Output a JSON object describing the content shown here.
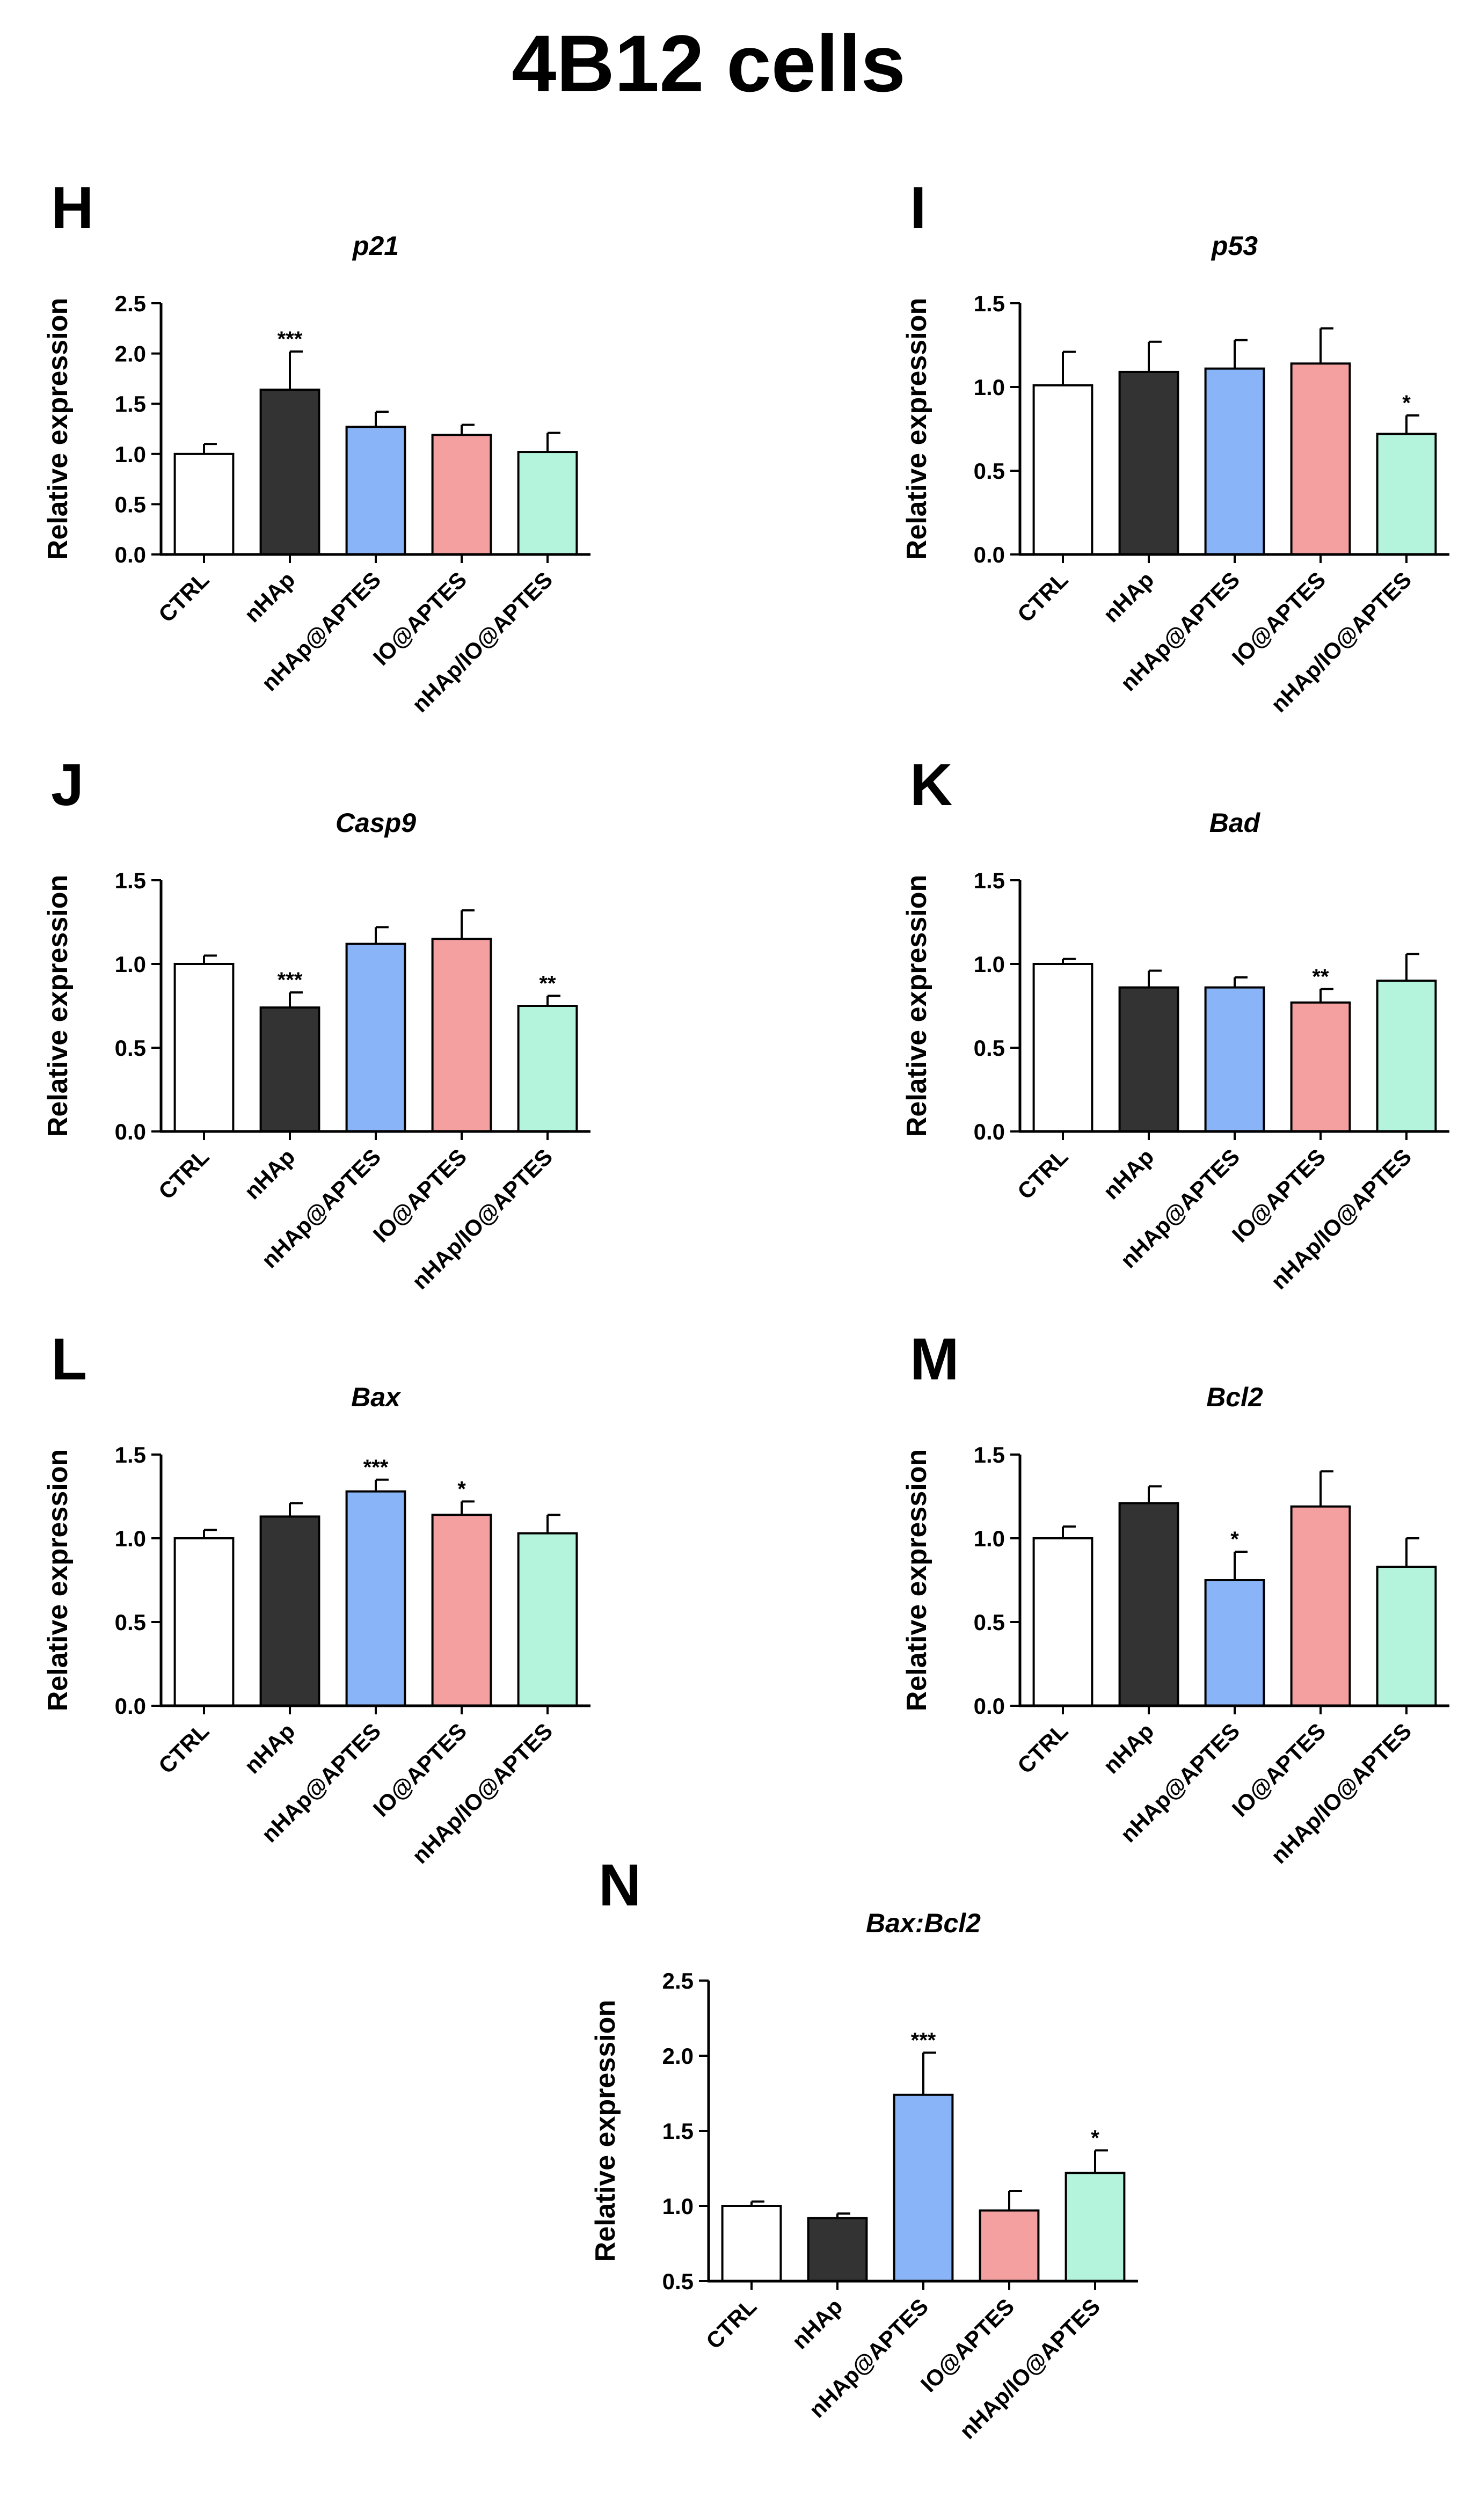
{
  "figure": {
    "title": "4B12 cells"
  },
  "colors": {
    "CTRL": "#ffffff",
    "nHAp": "#333333",
    "nHAp@APTES": "#8ab4f8",
    "IO@APTES": "#f4a0a0",
    "nHAp/IO@APTES": "#b4f4dc"
  },
  "chart_data": [
    {
      "panel": "H",
      "type": "bar",
      "title": "p21",
      "ylabel": "Relative expression",
      "categories": [
        "CTRL",
        "nHAp",
        "nHAp@APTES",
        "IO@APTES",
        "nHAp/IO@APTES"
      ],
      "values": [
        1.0,
        1.64,
        1.27,
        1.19,
        1.02
      ],
      "errors": [
        0.1,
        0.38,
        0.15,
        0.1,
        0.19
      ],
      "significance": [
        "",
        "***",
        "",
        "",
        ""
      ],
      "ylim": [
        0,
        2.5
      ],
      "yticks": [
        "0.0",
        "0.5",
        "1.0",
        "1.5",
        "2.0",
        "2.5"
      ]
    },
    {
      "panel": "I",
      "type": "bar",
      "title": "p53",
      "ylabel": "Relative expression",
      "categories": [
        "CTRL",
        "nHAp",
        "nHAp@APTES",
        "IO@APTES",
        "nHAp/IO@APTES"
      ],
      "values": [
        1.01,
        1.09,
        1.11,
        1.14,
        0.72
      ],
      "errors": [
        0.2,
        0.18,
        0.17,
        0.21,
        0.11
      ],
      "significance": [
        "",
        "",
        "",
        "",
        "*"
      ],
      "ylim": [
        0,
        1.5
      ],
      "yticks": [
        "0.0",
        "0.5",
        "1.0",
        "1.5"
      ]
    },
    {
      "panel": "J",
      "type": "bar",
      "title": "Casp9",
      "ylabel": "Relative expression",
      "categories": [
        "CTRL",
        "nHAp",
        "nHAp@APTES",
        "IO@APTES",
        "nHAp/IO@APTES"
      ],
      "values": [
        1.0,
        0.74,
        1.12,
        1.15,
        0.75
      ],
      "errors": [
        0.05,
        0.09,
        0.1,
        0.17,
        0.06
      ],
      "significance": [
        "",
        "***",
        "",
        "",
        "**"
      ],
      "ylim": [
        0,
        1.5
      ],
      "yticks": [
        "0.0",
        "0.5",
        "1.0",
        "1.5"
      ]
    },
    {
      "panel": "K",
      "type": "bar",
      "title": "Bad",
      "ylabel": "Relative expression",
      "categories": [
        "CTRL",
        "nHAp",
        "nHAp@APTES",
        "IO@APTES",
        "nHAp/IO@APTES"
      ],
      "values": [
        1.0,
        0.86,
        0.86,
        0.77,
        0.9
      ],
      "errors": [
        0.03,
        0.1,
        0.06,
        0.08,
        0.16
      ],
      "significance": [
        "",
        "",
        "",
        "**",
        ""
      ],
      "ylim": [
        0,
        1.5
      ],
      "yticks": [
        "0.0",
        "0.5",
        "1.0",
        "1.5"
      ]
    },
    {
      "panel": "L",
      "type": "bar",
      "title": "Bax",
      "ylabel": "Relative expression",
      "categories": [
        "CTRL",
        "nHAp",
        "nHAp@APTES",
        "IO@APTES",
        "nHAp/IO@APTES"
      ],
      "values": [
        1.0,
        1.13,
        1.28,
        1.14,
        1.03
      ],
      "errors": [
        0.05,
        0.08,
        0.07,
        0.08,
        0.11
      ],
      "significance": [
        "",
        "",
        "***",
        "*",
        ""
      ],
      "ylim": [
        0,
        1.5
      ],
      "yticks": [
        "0.0",
        "0.5",
        "1.0",
        "1.5"
      ]
    },
    {
      "panel": "M",
      "type": "bar",
      "title": "Bcl2",
      "ylabel": "Relative expression",
      "categories": [
        "CTRL",
        "nHAp",
        "nHAp@APTES",
        "IO@APTES",
        "nHAp/IO@APTES"
      ],
      "values": [
        1.0,
        1.21,
        0.75,
        1.19,
        0.83
      ],
      "errors": [
        0.07,
        0.1,
        0.17,
        0.21,
        0.17
      ],
      "significance": [
        "",
        "",
        "*",
        "",
        ""
      ],
      "ylim": [
        0,
        1.5
      ],
      "yticks": [
        "0.0",
        "0.5",
        "1.0",
        "1.5"
      ]
    },
    {
      "panel": "N",
      "type": "bar",
      "title": "Bax:Bcl2",
      "ylabel": "Relative expression",
      "categories": [
        "CTRL",
        "nHAp",
        "nHAp@APTES",
        "IO@APTES",
        "nHAp/IO@APTES"
      ],
      "values": [
        1.0,
        0.92,
        1.74,
        0.97,
        1.22
      ],
      "errors": [
        0.03,
        0.03,
        0.28,
        0.13,
        0.15
      ],
      "significance": [
        "",
        "",
        "***",
        "",
        "*"
      ],
      "ylim": [
        0.5,
        2.5
      ],
      "yticks": [
        "0.5",
        "1.0",
        "1.5",
        "2.0",
        "2.5"
      ]
    }
  ]
}
